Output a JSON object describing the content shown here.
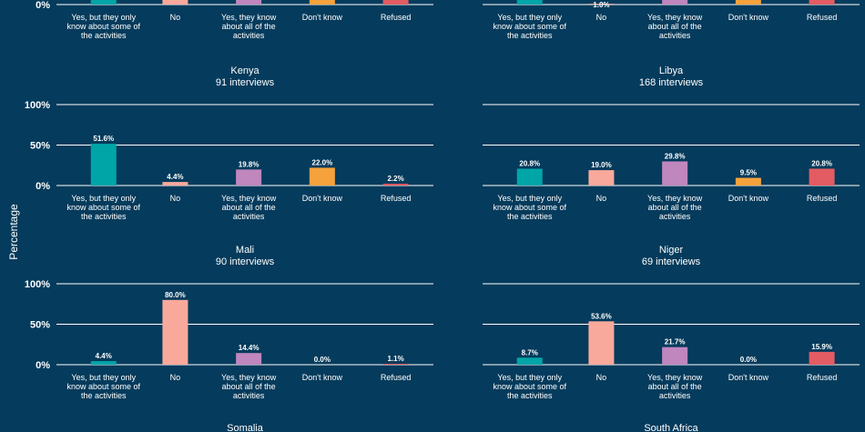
{
  "figure": {
    "ylabel": "Percentage",
    "yticks": [
      "0%",
      "50%",
      "100%"
    ],
    "categories": [
      "Yes, but they only know about some of the activities",
      "No",
      "Yes, they know about all of the activities",
      "Don't know",
      "Refused"
    ],
    "colors": [
      "#00a5a8",
      "#f9a99c",
      "#bf87be",
      "#f5a23c",
      "#e35c63"
    ]
  },
  "chart_data": [
    {
      "type": "bar",
      "title": "",
      "subtitle": "",
      "values": [
        null,
        null,
        null,
        null,
        null
      ],
      "value_labels": [
        "",
        "",
        "",
        "",
        ""
      ],
      "ylim": [
        0,
        100
      ],
      "cut_top": true
    },
    {
      "type": "bar",
      "title": "",
      "subtitle": "",
      "values": [
        null,
        1.0,
        null,
        null,
        null
      ],
      "value_labels": [
        "",
        "1.0%",
        "",
        "",
        ""
      ],
      "ylim": [
        0,
        100
      ],
      "cut_top": true
    },
    {
      "type": "bar",
      "title": "Kenya",
      "subtitle": "91 interviews",
      "values": [
        51.6,
        4.4,
        19.8,
        22.0,
        2.2
      ],
      "value_labels": [
        "51.6%",
        "4.4%",
        "19.8%",
        "22.0%",
        "2.2%"
      ],
      "ylim": [
        0,
        100
      ]
    },
    {
      "type": "bar",
      "title": "Libya",
      "subtitle": "168 interviews",
      "values": [
        20.8,
        19.0,
        29.8,
        9.5,
        20.8
      ],
      "value_labels": [
        "20.8%",
        "19.0%",
        "29.8%",
        "9.5%",
        "20.8%"
      ],
      "ylim": [
        0,
        100
      ]
    },
    {
      "type": "bar",
      "title": "Mali",
      "subtitle": "90 interviews",
      "values": [
        4.4,
        80.0,
        14.4,
        0.0,
        1.1
      ],
      "value_labels": [
        "4.4%",
        "80.0%",
        "14.4%",
        "0.0%",
        "1.1%"
      ],
      "ylim": [
        0,
        100
      ]
    },
    {
      "type": "bar",
      "title": "Niger",
      "subtitle": "69 interviews",
      "values": [
        8.7,
        53.6,
        21.7,
        0.0,
        15.9
      ],
      "value_labels": [
        "8.7%",
        "53.6%",
        "21.7%",
        "0.0%",
        "15.9%"
      ],
      "ylim": [
        0,
        100
      ]
    },
    {
      "type": "bar",
      "title": "Somalia",
      "subtitle": "",
      "values": [],
      "value_labels": [],
      "ylim": [
        0,
        100
      ],
      "header_only": true
    },
    {
      "type": "bar",
      "title": "South Africa",
      "subtitle": "",
      "values": [],
      "value_labels": [],
      "ylim": [
        0,
        100
      ],
      "header_only": true
    }
  ]
}
